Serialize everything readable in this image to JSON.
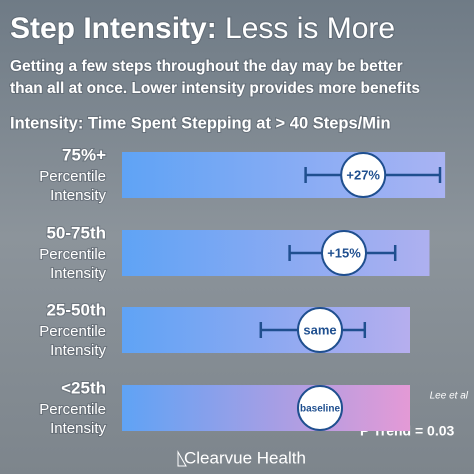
{
  "chart_data": {
    "type": "bar",
    "title": [
      "Step Intensity:",
      "Less is More"
    ],
    "subtitle": [
      "Getting a few steps throughout the day may be better",
      "than all at once. Lower intensity provides more benefits"
    ],
    "axis_title": "Intensity: Time Spent Stepping at > 40 Steps/Min",
    "categories": [
      "75%+",
      "50-75th",
      "25-50th",
      "<25th"
    ],
    "category_sublabel": [
      "Percentile",
      "Intensity"
    ],
    "values": [
      27,
      15,
      0,
      0
    ],
    "value_labels": [
      "+27%",
      "+15%",
      "same",
      "baseline"
    ],
    "ci": [
      [
        -9,
        75
      ],
      [
        -19,
        47
      ],
      [
        -37,
        28
      ],
      null
    ],
    "color": "#1f4f8f",
    "annotation": "P Trend = 0.03",
    "source": "Lee et al",
    "brand": "Clearvue Health"
  }
}
